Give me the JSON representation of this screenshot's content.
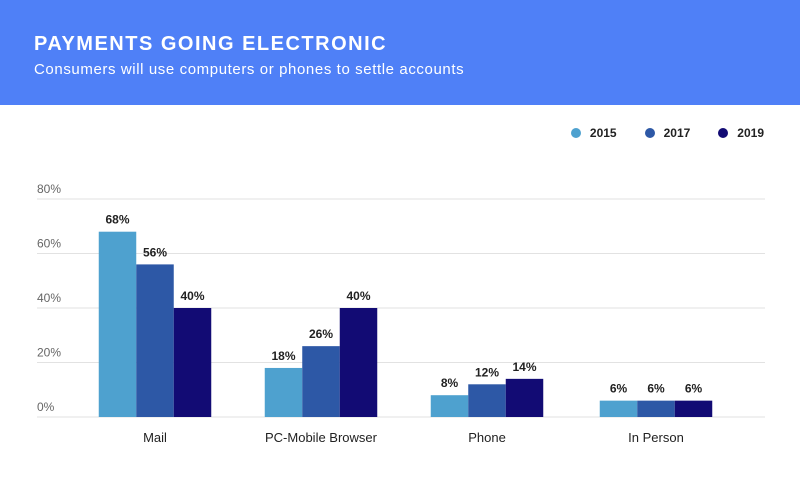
{
  "header": {
    "title": "PAYMENTS GOING ELECTRONIC",
    "subtitle": "Consumers will use computers or phones to settle accounts"
  },
  "colors": {
    "header_bg": "#4f80f7",
    "s2015": "#4ea1cf",
    "s2017": "#2d58a6",
    "s2019": "#120b74"
  },
  "chart_data": {
    "type": "bar",
    "title": "PAYMENTS GOING ELECTRONIC",
    "subtitle": "Consumers will use computers or phones to settle accounts",
    "categories": [
      "Mail",
      "PC-Mobile Browser",
      "Phone",
      "In Person"
    ],
    "series": [
      {
        "name": "2015",
        "values": [
          68,
          18,
          8,
          6
        ],
        "labels": [
          "68%",
          "18%",
          "8%",
          "6%"
        ],
        "color": "#4ea1cf"
      },
      {
        "name": "2017",
        "values": [
          56,
          26,
          12,
          6
        ],
        "labels": [
          "56%",
          "26%",
          "12%",
          "6%"
        ],
        "color": "#2d58a6"
      },
      {
        "name": "2019",
        "values": [
          40,
          40,
          14,
          6
        ],
        "labels": [
          "40%",
          "40%",
          "14%",
          "6%"
        ],
        "color": "#120b74"
      }
    ],
    "ylim": [
      0,
      80
    ],
    "yticks": [
      0,
      20,
      40,
      60,
      80
    ],
    "ytick_labels": [
      "0%",
      "20%",
      "40%",
      "60%",
      "80%"
    ],
    "xlabel": "",
    "ylabel": "",
    "grid": true,
    "legend_position": "top-right"
  }
}
